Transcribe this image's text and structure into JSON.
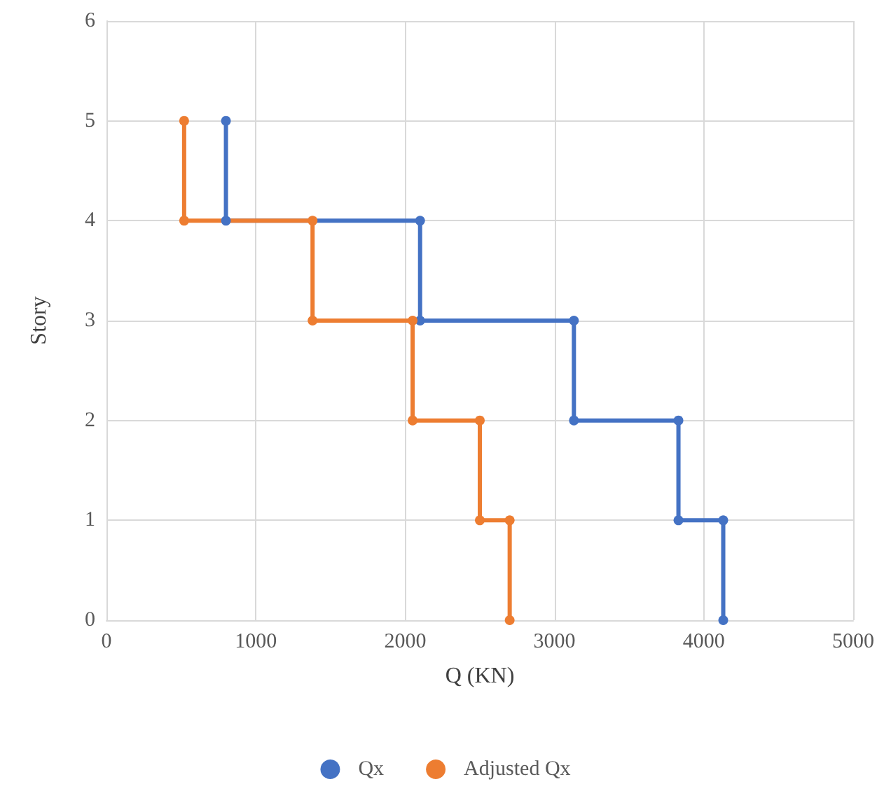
{
  "chart_data": {
    "type": "line",
    "xlabel": "Q (KN)",
    "ylabel": "Story",
    "xlim": [
      0,
      5000
    ],
    "xticks": [
      0,
      1000,
      2000,
      3000,
      4000,
      5000
    ],
    "ylim": [
      0,
      6
    ],
    "yticks": [
      0,
      1,
      2,
      3,
      4,
      5,
      6
    ],
    "grid": true,
    "legend": "bottom",
    "marker": "circle",
    "line_style": "solid",
    "series": [
      {
        "name": "Qx",
        "color": "#4472c4",
        "x": [
          4130,
          4130,
          3830,
          3830,
          3130,
          3130,
          2100,
          2100,
          800,
          800
        ],
        "values": [
          0,
          1,
          1,
          2,
          2,
          3,
          3,
          4,
          4,
          5
        ]
      },
      {
        "name": "Adjusted Qx",
        "color": "#ed7d31",
        "x": [
          2700,
          2700,
          2500,
          2500,
          2050,
          2050,
          1380,
          1380,
          520,
          520
        ],
        "values": [
          0,
          1,
          1,
          2,
          2,
          3,
          3,
          4,
          4,
          5
        ]
      }
    ]
  }
}
